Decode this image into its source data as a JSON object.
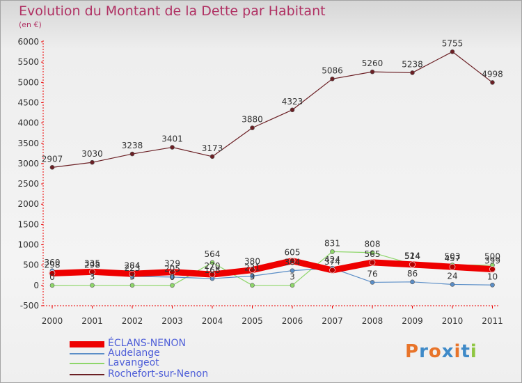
{
  "chart_data": {
    "type": "line",
    "title": "Evolution du Montant de la Dette par Habitant",
    "subtitle": "(en €)",
    "categories": [
      "2000",
      "2001",
      "2002",
      "2003",
      "2004",
      "2005",
      "2006",
      "2007",
      "2008",
      "2009",
      "2010",
      "2011"
    ],
    "ylim": [
      -500,
      6000
    ],
    "yticks": [
      -500,
      0,
      500,
      1000,
      1500,
      2000,
      2500,
      3000,
      3500,
      4000,
      4500,
      5000,
      5500,
      6000
    ],
    "grid": false,
    "legend_position": "bottom-left",
    "series": [
      {
        "name": "ÉCLANS-NENON",
        "color": "#ee0000",
        "width": 9,
        "values": [
          298,
          335,
          284,
          329,
          270,
          380,
          605,
          374,
          565,
          514,
          457,
          399
        ],
        "labels": [
          "298",
          "335",
          "284",
          "329",
          "270",
          "380",
          "605",
          "374",
          "565",
          "514",
          "457",
          "399"
        ]
      },
      {
        "name": "Audelange",
        "color": "#5b8ec7",
        "width": 1.2,
        "values": [
          360,
          298,
          223,
          205,
          168,
          231,
          364,
          424,
          76,
          86,
          24,
          10
        ],
        "labels": [
          "360",
          "298",
          "223",
          "205",
          "168",
          "231",
          "364",
          "424",
          "76",
          "86",
          "24",
          "10"
        ]
      },
      {
        "name": "Lavangeot",
        "color": "#8ed66a",
        "width": 1.2,
        "values": [
          0,
          3,
          3,
          0,
          564,
          3,
          3,
          831,
          808,
          524,
          503,
          500
        ],
        "labels": [
          "0",
          "3",
          "3",
          "0",
          "564",
          "3",
          "3",
          "831",
          "808",
          "524",
          "503",
          "500"
        ]
      },
      {
        "name": "Rochefort-sur-Nenon",
        "color": "#6b1f24",
        "width": 1.2,
        "values": [
          2907,
          3030,
          3238,
          3401,
          3173,
          3880,
          4323,
          5086,
          5260,
          5238,
          5755,
          4998
        ],
        "labels": [
          "2907",
          "3030",
          "3238",
          "3401",
          "3173",
          "3880",
          "4323",
          "5086",
          "5260",
          "5238",
          "5755",
          "4998"
        ]
      }
    ]
  },
  "logo": {
    "text": "Proxiti",
    "colors": [
      "#e8742a",
      "#3f8ac8",
      "#e8742a",
      "#3f8ac8",
      "#e8742a",
      "#3f8ac8",
      "#8fc641"
    ]
  }
}
